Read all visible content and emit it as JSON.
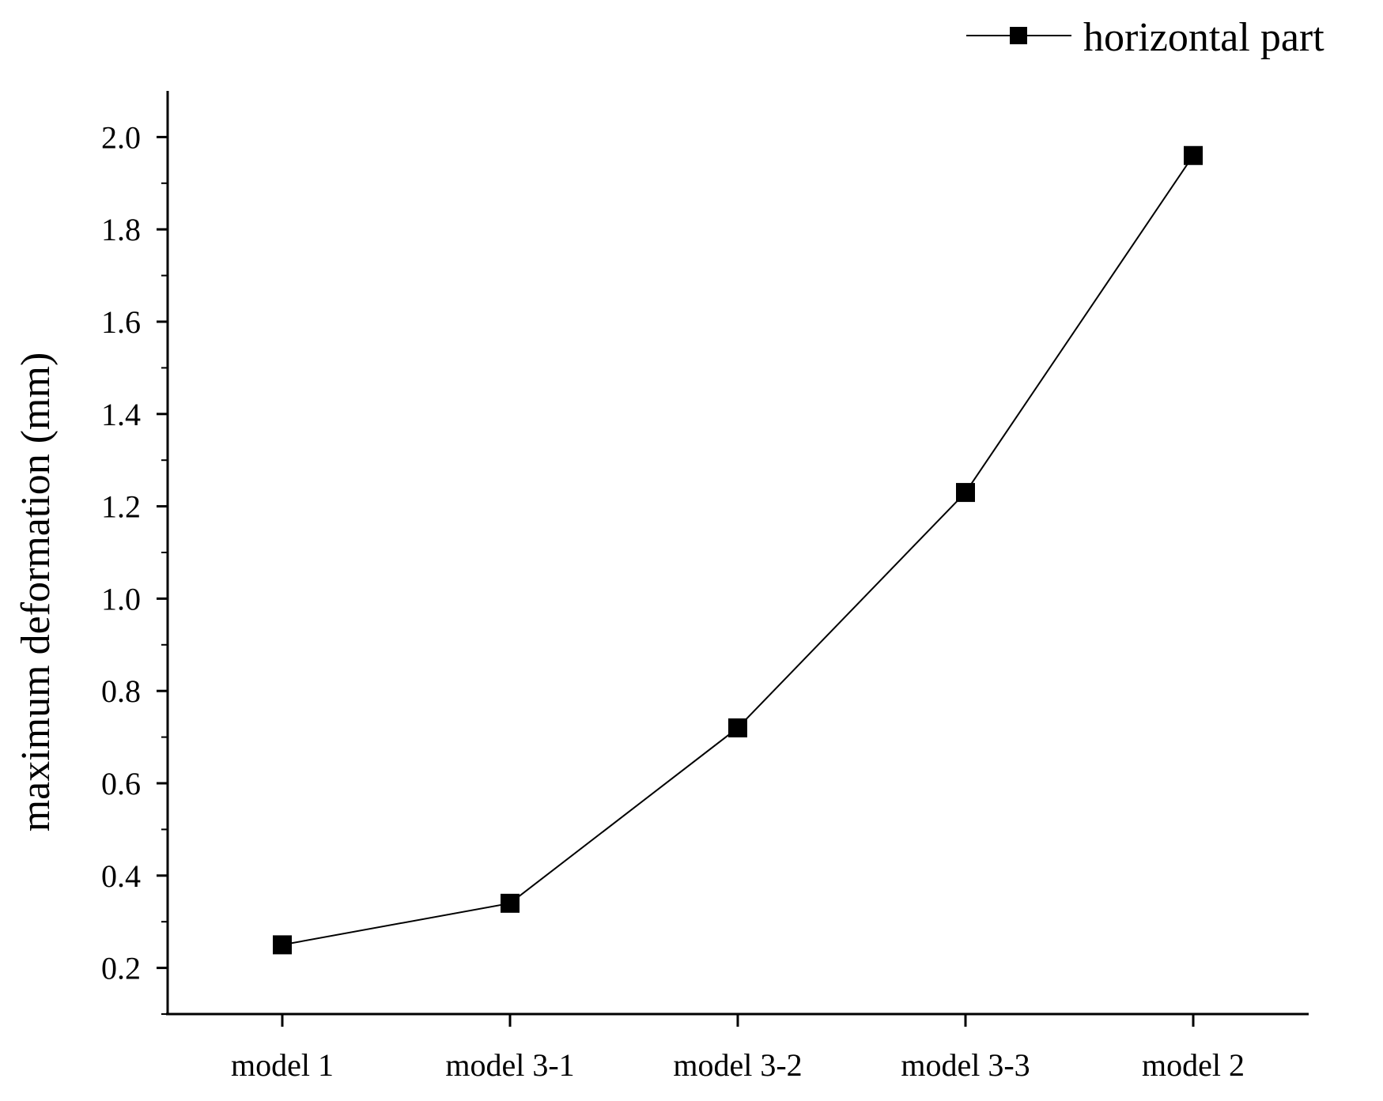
{
  "chart_data": {
    "type": "line",
    "categories": [
      "model 1",
      "model 3-1",
      "model 3-2",
      "model 3-3",
      "model 2"
    ],
    "series": [
      {
        "name": "horizontal part",
        "values": [
          0.25,
          0.34,
          0.72,
          1.23,
          1.96
        ],
        "color": "#000000",
        "marker": "square"
      }
    ],
    "xlabel": "",
    "ylabel": "maximum deformation (mm)",
    "ylim": [
      0.1,
      2.1
    ],
    "yticks": [
      "0.2",
      "0.4",
      "0.6",
      "0.8",
      "1.0",
      "1.2",
      "1.4",
      "1.6",
      "1.8",
      "2.0"
    ],
    "ytick_values": [
      0.2,
      0.4,
      0.6,
      0.8,
      1.0,
      1.2,
      1.4,
      1.6,
      1.8,
      2.0
    ],
    "grid": false,
    "legend_position": "top-right"
  }
}
